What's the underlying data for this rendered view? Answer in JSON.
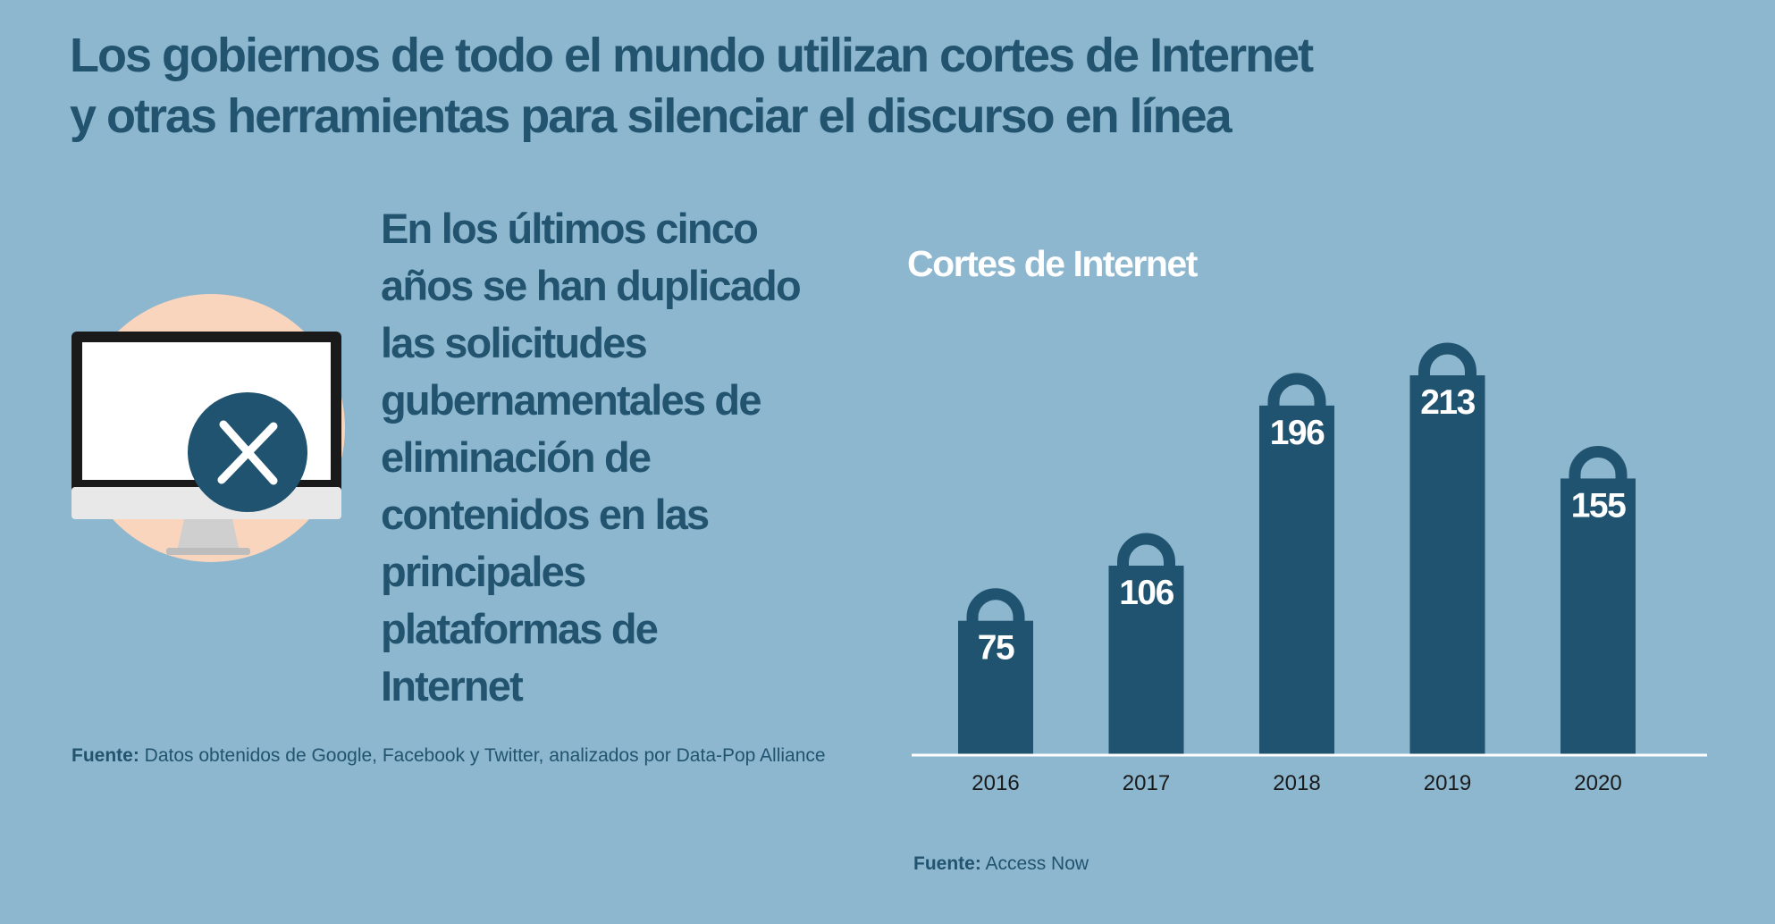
{
  "headline": {
    "line1": "Los gobiernos de todo el mundo utilizan cortes de Internet",
    "line2": "y otras herramientas para silenciar el discurso en línea"
  },
  "stat": {
    "lines": [
      "En los últimos cinco",
      "años se han duplicado",
      "las solicitudes",
      "gubernamentales de",
      "eliminación de",
      "contenidos en las",
      "principales",
      "plataformas de",
      "Internet"
    ]
  },
  "source_left": {
    "label": "Fuente:",
    "text": " Datos obtenidos de Google, Facebook y Twitter, analizados por Data-Pop Alliance"
  },
  "source_right": {
    "label": "Fuente:",
    "text": " Access Now"
  },
  "illustration": {
    "icon": "monitor-with-x-icon",
    "colors": {
      "circle": "#f9d5bd",
      "badge": "#1f5370",
      "screen": "#ffffff",
      "frame": "#1a1a1a"
    }
  },
  "colors": {
    "background": "#8db6cf",
    "accent": "#22546f",
    "bar": "#1f5370",
    "axis": "#ffffff"
  },
  "chart_data": {
    "type": "bar",
    "title": "Cortes de Internet",
    "categories": [
      "2016",
      "2017",
      "2018",
      "2019",
      "2020"
    ],
    "values": [
      75,
      106,
      196,
      213,
      155
    ],
    "xlabel": "",
    "ylabel": "",
    "ylim": [
      0,
      213
    ],
    "grid": false,
    "data_labels": true,
    "bar_style": "padlock"
  }
}
